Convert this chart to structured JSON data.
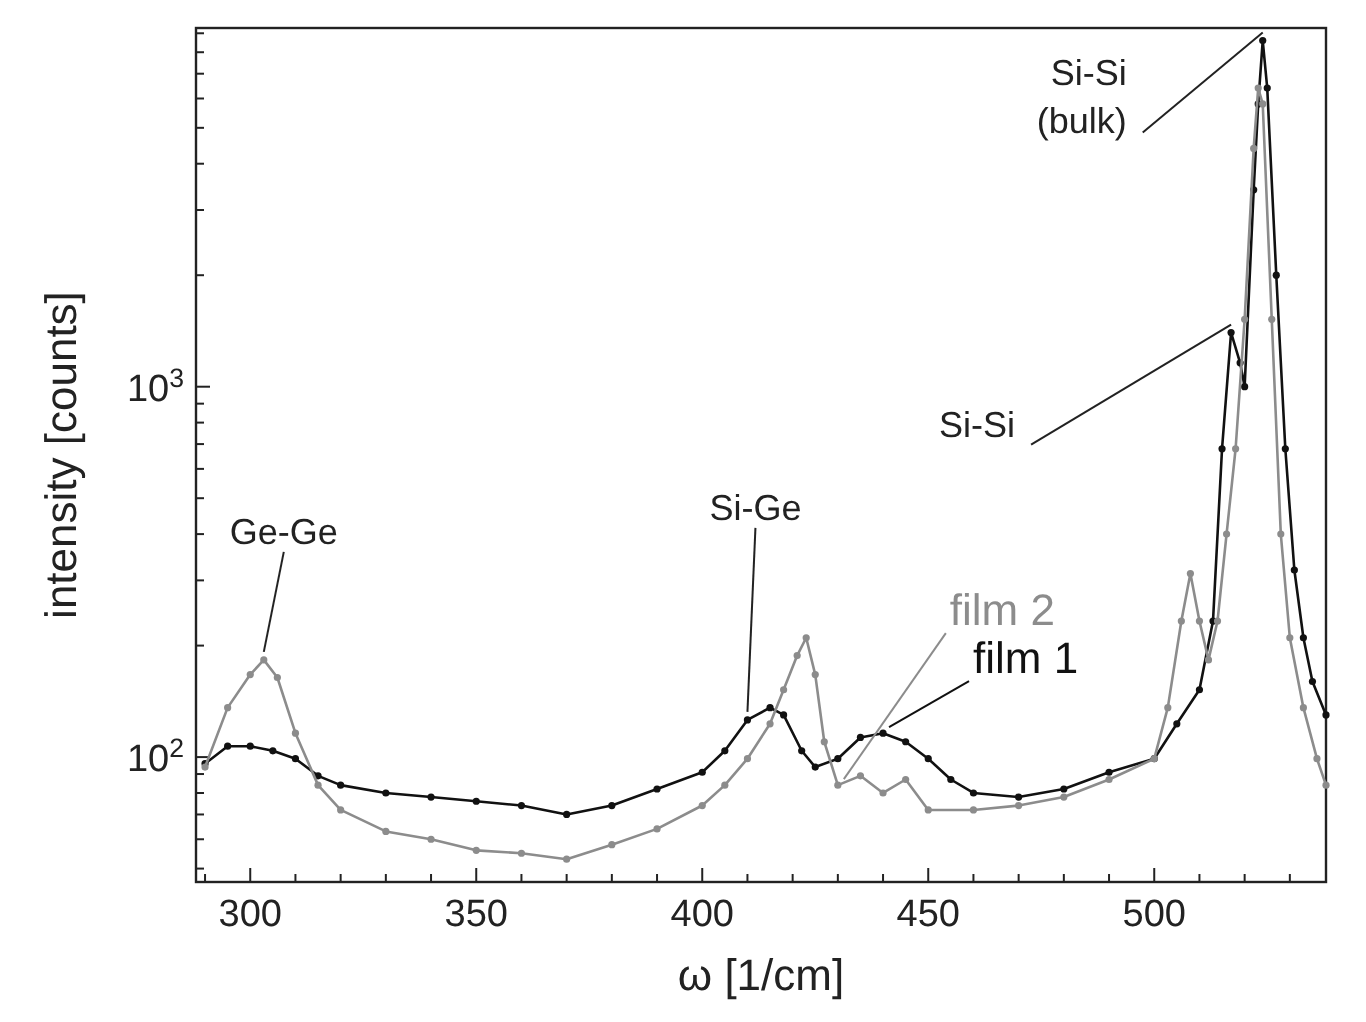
{
  "chart_data": {
    "type": "line",
    "xlabel": "ω  [1/cm]",
    "ylabel": "intensity [counts]",
    "log": "y",
    "marker": "circle",
    "line_style": "solid",
    "grid": false,
    "legend": false,
    "xlim": [
      288,
      538
    ],
    "ylim": [
      46,
      9300
    ],
    "xticks": [
      {
        "value": 290,
        "label": null
      },
      300,
      {
        "value": 310,
        "label": null
      },
      {
        "value": 320,
        "label": null
      },
      {
        "value": 330,
        "label": null
      },
      {
        "value": 340,
        "label": null
      },
      350,
      {
        "value": 360,
        "label": null
      },
      {
        "value": 370,
        "label": null
      },
      {
        "value": 380,
        "label": null
      },
      {
        "value": 390,
        "label": null
      },
      400,
      {
        "value": 410,
        "label": null
      },
      {
        "value": 420,
        "label": null
      },
      {
        "value": 430,
        "label": null
      },
      {
        "value": 440,
        "label": null
      },
      450,
      {
        "value": 460,
        "label": null
      },
      {
        "value": 470,
        "label": null
      },
      {
        "value": 480,
        "label": null
      },
      {
        "value": 490,
        "label": null
      },
      500,
      {
        "value": 510,
        "label": null
      },
      {
        "value": 520,
        "label": null
      },
      {
        "value": 530,
        "label": null
      }
    ],
    "yticks": [
      {
        "value": 50,
        "label": null
      },
      {
        "value": 60,
        "label": null
      },
      {
        "value": 70,
        "label": null
      },
      {
        "value": 80,
        "label": null
      },
      {
        "value": 90,
        "label": null
      },
      {
        "value": 100,
        "label": "10$^{2}$"
      },
      {
        "value": 200,
        "label": null
      },
      {
        "value": 300,
        "label": null
      },
      {
        "value": 400,
        "label": null
      },
      {
        "value": 500,
        "label": null
      },
      {
        "value": 600,
        "label": null
      },
      {
        "value": 700,
        "label": null
      },
      {
        "value": 800,
        "label": null
      },
      {
        "value": 900,
        "label": null
      },
      {
        "value": 1000,
        "label": "10$^{3}$"
      },
      {
        "value": 2000,
        "label": null
      },
      {
        "value": 3000,
        "label": null
      },
      {
        "value": 4000,
        "label": null
      },
      {
        "value": 5000,
        "label": null
      },
      {
        "value": 6000,
        "label": null
      },
      {
        "value": 7000,
        "label": null
      },
      {
        "value": 8000,
        "label": null
      },
      {
        "value": 9000,
        "label": null
      }
    ],
    "series": [
      {
        "name": "film 1",
        "color": "#111111",
        "x": [
          290,
          295,
          300,
          305,
          310,
          315,
          320,
          330,
          340,
          350,
          360,
          370,
          380,
          390,
          400,
          405,
          410,
          415,
          418,
          422,
          425,
          430,
          435,
          440,
          445,
          450,
          455,
          460,
          470,
          480,
          490,
          500,
          505,
          510,
          513,
          515,
          517,
          519,
          520,
          522,
          523,
          524,
          525,
          527,
          529,
          531,
          533,
          535,
          538
        ],
        "values": [
          96,
          107,
          107,
          104,
          99,
          89,
          84,
          80,
          78,
          76,
          74,
          70,
          74,
          82,
          91,
          104,
          126,
          136,
          130,
          104,
          94,
          99,
          113,
          116,
          110,
          99,
          87,
          80,
          78,
          82,
          91,
          99,
          123,
          152,
          233,
          680,
          1400,
          1160,
          1000,
          3400,
          5800,
          8600,
          6400,
          2000,
          680,
          320,
          210,
          160,
          130
        ]
      },
      {
        "name": "film 2",
        "color": "#8c8c8c",
        "x": [
          290,
          295,
          300,
          303,
          306,
          310,
          315,
          320,
          330,
          340,
          350,
          360,
          370,
          380,
          390,
          400,
          405,
          410,
          415,
          418,
          421,
          423,
          425,
          427,
          430,
          435,
          440,
          445,
          450,
          460,
          470,
          480,
          490,
          500,
          503,
          506,
          508,
          510,
          512,
          514,
          516,
          518,
          520,
          522,
          523,
          524,
          526,
          528,
          530,
          533,
          536,
          538
        ],
        "values": [
          94,
          136,
          167,
          183,
          164,
          116,
          84,
          72,
          63,
          60,
          56,
          55,
          53,
          58,
          64,
          74,
          84,
          99,
          123,
          152,
          188,
          210,
          167,
          110,
          84,
          89,
          80,
          87,
          72,
          72,
          74,
          78,
          87,
          99,
          136,
          233,
          313,
          233,
          183,
          233,
          400,
          680,
          1520,
          4400,
          6400,
          5800,
          1520,
          400,
          210,
          136,
          99,
          84
        ]
      }
    ],
    "annotations": [
      {
        "text": "Ge-Ge",
        "x": 303,
        "y": 183
      },
      {
        "text": "Si-Ge",
        "x": 410,
        "y": 126
      },
      {
        "text": "Si-Si",
        "x": 517,
        "y": 1400
      },
      {
        "text": "Si-Si\n(bulk)",
        "x": 524,
        "y": 8600
      }
    ]
  }
}
